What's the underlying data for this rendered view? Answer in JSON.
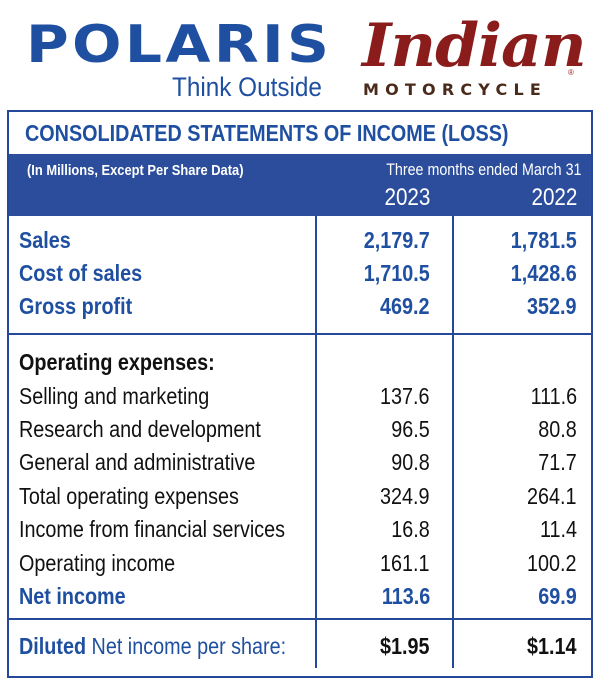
{
  "logos": {
    "polaris": "POLARIS",
    "polaris_tagline": "Think Outside",
    "indian": "Indian",
    "indian_sub": "MOTORCYCLE",
    "indian_reg": "®",
    "polaris_color": "#1f4fa0",
    "indian_color": "#8a1c1c"
  },
  "statement": {
    "title": "CONSOLIDATED STATEMENTS OF INCOME (LOSS)",
    "units": "(In Millions, Except Per Share Data)",
    "period": "Three months ended March 31",
    "years": [
      "2023",
      "2022"
    ],
    "header_color": "#2c4d9c",
    "summary_rows": [
      {
        "label": "Sales",
        "v2023": "2,179.7",
        "v2022": "1,781.5"
      },
      {
        "label": "Cost of sales",
        "v2023": "1,710.5",
        "v2022": "1,428.6"
      },
      {
        "label": "Gross profit",
        "v2023": "469.2",
        "v2022": "352.9"
      }
    ],
    "opex_heading": "Operating expenses:",
    "opex_rows": [
      {
        "label": "Selling and marketing",
        "v2023": "137.6",
        "v2022": "111.6"
      },
      {
        "label": "Research and development",
        "v2023": "96.5",
        "v2022": "80.8"
      },
      {
        "label": "General and administrative",
        "v2023": "90.8",
        "v2022": "71.7"
      },
      {
        "label": "Total operating expenses",
        "v2023": "324.9",
        "v2022": "264.1"
      },
      {
        "label": "Income from financial services",
        "v2023": "16.8",
        "v2022": "11.4"
      },
      {
        "label": "Operating income",
        "v2023": "161.1",
        "v2022": "100.2"
      }
    ],
    "net_income": {
      "label": "Net income",
      "v2023": "113.6",
      "v2022": "69.9"
    },
    "eps": {
      "label_strong": "Diluted",
      "label_rest": " Net income per share:",
      "v2023": "$1.95",
      "v2022": "$1.14"
    }
  }
}
